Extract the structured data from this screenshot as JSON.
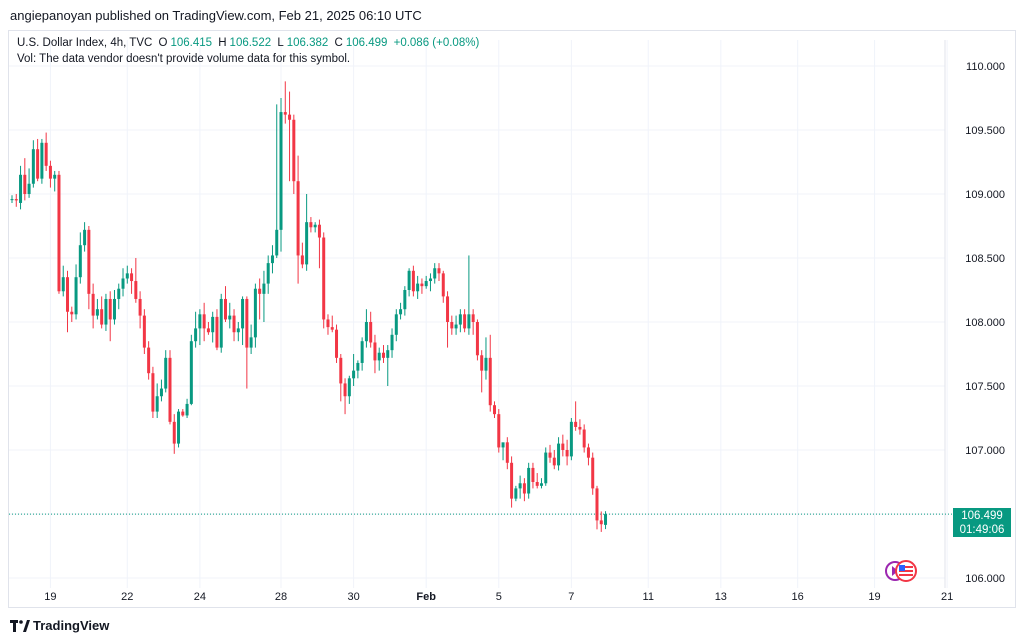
{
  "header": {
    "published": "angiepanoyan published on TradingView.com, Feb 21, 2025 06:10 UTC"
  },
  "legend": {
    "title": "U.S. Dollar Index, 4h, TVC",
    "o_label": "O",
    "o_value": "106.415",
    "h_label": "H",
    "h_value": "106.522",
    "l_label": "L",
    "l_value": "106.382",
    "c_label": "C",
    "c_value": "106.499",
    "change": "+0.086 (+0.08%)",
    "volume_note": "Vol: The data vendor doesn't provide volume data for this symbol."
  },
  "badge": {
    "price": "106.499",
    "countdown": "01:49:06"
  },
  "footer": {
    "brand": "TradingView"
  },
  "colors": {
    "up": "#089981",
    "down": "#f23645",
    "grid": "#f0f3fa",
    "axis_text": "#131722",
    "last_line": "#089981"
  },
  "chart_data": {
    "type": "candlestick",
    "title": "U.S. Dollar Index, 4h, TVC",
    "ylim": [
      106.0,
      110.05
    ],
    "y_ticks": [
      "106.000",
      "106.500",
      "107.000",
      "107.500",
      "108.000",
      "108.500",
      "109.000",
      "109.500",
      "110.000"
    ],
    "y_tick_values": [
      106.0,
      106.5,
      107.0,
      107.5,
      108.0,
      108.5,
      109.0,
      109.5,
      110.0
    ],
    "x_ticks": [
      "19",
      "22",
      "24",
      "28",
      "30",
      "Feb",
      "5",
      "7",
      "11",
      "13",
      "16",
      "19",
      "21"
    ],
    "x_tick_index": [
      9,
      27,
      44,
      63,
      80,
      97,
      114,
      131,
      149,
      166,
      184,
      202,
      219
    ],
    "last_price": 106.499,
    "candles": [
      {
        "o": 108.96,
        "h": 108.99,
        "l": 108.93,
        "c": 108.96
      },
      {
        "o": 108.96,
        "h": 109.0,
        "l": 108.9,
        "c": 108.95
      },
      {
        "o": 108.93,
        "h": 109.22,
        "l": 108.88,
        "c": 109.15
      },
      {
        "o": 109.15,
        "h": 109.28,
        "l": 108.95,
        "c": 109.0
      },
      {
        "o": 109.0,
        "h": 109.2,
        "l": 108.97,
        "c": 109.08
      },
      {
        "o": 109.08,
        "h": 109.42,
        "l": 109.05,
        "c": 109.35
      },
      {
        "o": 109.35,
        "h": 109.43,
        "l": 109.1,
        "c": 109.12
      },
      {
        "o": 109.12,
        "h": 109.43,
        "l": 109.08,
        "c": 109.4
      },
      {
        "o": 109.4,
        "h": 109.48,
        "l": 109.18,
        "c": 109.22
      },
      {
        "o": 109.22,
        "h": 109.26,
        "l": 109.05,
        "c": 109.12
      },
      {
        "o": 109.12,
        "h": 109.18,
        "l": 109.02,
        "c": 109.15
      },
      {
        "o": 109.15,
        "h": 109.18,
        "l": 108.22,
        "c": 108.24
      },
      {
        "o": 108.24,
        "h": 108.44,
        "l": 108.2,
        "c": 108.35
      },
      {
        "o": 108.35,
        "h": 108.4,
        "l": 107.92,
        "c": 108.08
      },
      {
        "o": 108.08,
        "h": 108.12,
        "l": 108.0,
        "c": 108.06
      },
      {
        "o": 108.06,
        "h": 108.45,
        "l": 108.02,
        "c": 108.35
      },
      {
        "o": 108.35,
        "h": 108.7,
        "l": 108.3,
        "c": 108.6
      },
      {
        "o": 108.6,
        "h": 108.78,
        "l": 108.55,
        "c": 108.72
      },
      {
        "o": 108.72,
        "h": 108.75,
        "l": 108.1,
        "c": 108.22
      },
      {
        "o": 108.22,
        "h": 108.3,
        "l": 107.95,
        "c": 108.05
      },
      {
        "o": 108.05,
        "h": 108.18,
        "l": 108.02,
        "c": 108.1
      },
      {
        "o": 108.1,
        "h": 108.2,
        "l": 107.95,
        "c": 107.98
      },
      {
        "o": 107.98,
        "h": 108.22,
        "l": 107.93,
        "c": 108.18
      },
      {
        "o": 108.18,
        "h": 108.24,
        "l": 107.85,
        "c": 108.02
      },
      {
        "o": 108.02,
        "h": 108.25,
        "l": 107.98,
        "c": 108.18
      },
      {
        "o": 108.18,
        "h": 108.3,
        "l": 108.1,
        "c": 108.26
      },
      {
        "o": 108.26,
        "h": 108.42,
        "l": 108.2,
        "c": 108.34
      },
      {
        "o": 108.34,
        "h": 108.44,
        "l": 108.3,
        "c": 108.38
      },
      {
        "o": 108.38,
        "h": 108.42,
        "l": 108.22,
        "c": 108.32
      },
      {
        "o": 108.32,
        "h": 108.5,
        "l": 108.15,
        "c": 108.18
      },
      {
        "o": 108.18,
        "h": 108.24,
        "l": 107.95,
        "c": 108.05
      },
      {
        "o": 108.05,
        "h": 108.1,
        "l": 107.75,
        "c": 107.8
      },
      {
        "o": 107.8,
        "h": 107.85,
        "l": 107.55,
        "c": 107.6
      },
      {
        "o": 107.6,
        "h": 107.65,
        "l": 107.25,
        "c": 107.3
      },
      {
        "o": 107.3,
        "h": 107.52,
        "l": 107.25,
        "c": 107.42
      },
      {
        "o": 107.42,
        "h": 107.55,
        "l": 107.38,
        "c": 107.48
      },
      {
        "o": 107.48,
        "h": 107.78,
        "l": 107.45,
        "c": 107.72
      },
      {
        "o": 107.72,
        "h": 107.78,
        "l": 107.2,
        "c": 107.22
      },
      {
        "o": 107.22,
        "h": 107.28,
        "l": 106.97,
        "c": 107.05
      },
      {
        "o": 107.05,
        "h": 107.32,
        "l": 107.02,
        "c": 107.3
      },
      {
        "o": 107.3,
        "h": 107.32,
        "l": 107.26,
        "c": 107.27
      },
      {
        "o": 107.27,
        "h": 107.4,
        "l": 107.25,
        "c": 107.36
      },
      {
        "o": 107.36,
        "h": 107.9,
        "l": 107.35,
        "c": 107.85
      },
      {
        "o": 107.85,
        "h": 108.08,
        "l": 107.8,
        "c": 107.95
      },
      {
        "o": 107.95,
        "h": 108.1,
        "l": 107.82,
        "c": 108.06
      },
      {
        "o": 108.06,
        "h": 108.15,
        "l": 107.85,
        "c": 107.95
      },
      {
        "o": 107.95,
        "h": 108.0,
        "l": 107.9,
        "c": 107.92
      },
      {
        "o": 107.92,
        "h": 108.08,
        "l": 107.84,
        "c": 108.04
      },
      {
        "o": 108.04,
        "h": 108.1,
        "l": 107.78,
        "c": 107.8
      },
      {
        "o": 107.8,
        "h": 108.22,
        "l": 107.76,
        "c": 108.18
      },
      {
        "o": 108.18,
        "h": 108.28,
        "l": 108.0,
        "c": 108.02
      },
      {
        "o": 108.02,
        "h": 108.15,
        "l": 107.95,
        "c": 108.05
      },
      {
        "o": 108.05,
        "h": 108.1,
        "l": 107.85,
        "c": 107.92
      },
      {
        "o": 107.92,
        "h": 108.0,
        "l": 107.85,
        "c": 107.95
      },
      {
        "o": 107.95,
        "h": 108.2,
        "l": 107.82,
        "c": 108.18
      },
      {
        "o": 108.18,
        "h": 108.2,
        "l": 107.48,
        "c": 107.8
      },
      {
        "o": 107.8,
        "h": 107.98,
        "l": 107.75,
        "c": 107.88
      },
      {
        "o": 107.88,
        "h": 108.3,
        "l": 107.8,
        "c": 108.26
      },
      {
        "o": 108.26,
        "h": 108.34,
        "l": 108.02,
        "c": 108.22
      },
      {
        "o": 108.22,
        "h": 108.4,
        "l": 108.0,
        "c": 108.3
      },
      {
        "o": 108.3,
        "h": 108.52,
        "l": 108.22,
        "c": 108.46
      },
      {
        "o": 108.46,
        "h": 108.6,
        "l": 108.38,
        "c": 108.52
      },
      {
        "o": 108.52,
        "h": 109.7,
        "l": 108.5,
        "c": 108.72
      },
      {
        "o": 108.72,
        "h": 109.75,
        "l": 108.55,
        "c": 109.64
      },
      {
        "o": 109.64,
        "h": 109.88,
        "l": 109.55,
        "c": 109.62
      },
      {
        "o": 109.62,
        "h": 109.8,
        "l": 109.1,
        "c": 109.58
      },
      {
        "o": 109.58,
        "h": 109.62,
        "l": 109.0,
        "c": 109.1
      },
      {
        "o": 109.1,
        "h": 109.3,
        "l": 108.3,
        "c": 108.52
      },
      {
        "o": 108.52,
        "h": 108.62,
        "l": 108.42,
        "c": 108.45
      },
      {
        "o": 108.45,
        "h": 109.0,
        "l": 108.4,
        "c": 108.78
      },
      {
        "o": 108.78,
        "h": 108.82,
        "l": 108.7,
        "c": 108.74
      },
      {
        "o": 108.74,
        "h": 108.78,
        "l": 108.7,
        "c": 108.76
      },
      {
        "o": 108.76,
        "h": 108.8,
        "l": 108.42,
        "c": 108.66
      },
      {
        "o": 108.66,
        "h": 108.7,
        "l": 107.95,
        "c": 108.02
      },
      {
        "o": 108.02,
        "h": 108.06,
        "l": 107.9,
        "c": 107.96
      },
      {
        "o": 107.96,
        "h": 108.05,
        "l": 107.92,
        "c": 107.94
      },
      {
        "o": 107.94,
        "h": 107.98,
        "l": 107.68,
        "c": 107.72
      },
      {
        "o": 107.72,
        "h": 107.75,
        "l": 107.38,
        "c": 107.52
      },
      {
        "o": 107.52,
        "h": 107.56,
        "l": 107.28,
        "c": 107.42
      },
      {
        "o": 107.42,
        "h": 107.58,
        "l": 107.36,
        "c": 107.56
      },
      {
        "o": 107.56,
        "h": 107.75,
        "l": 107.5,
        "c": 107.62
      },
      {
        "o": 107.62,
        "h": 107.7,
        "l": 107.56,
        "c": 107.68
      },
      {
        "o": 107.68,
        "h": 107.88,
        "l": 107.62,
        "c": 107.85
      },
      {
        "o": 107.85,
        "h": 108.1,
        "l": 107.8,
        "c": 108.0
      },
      {
        "o": 108.0,
        "h": 108.08,
        "l": 107.8,
        "c": 107.84
      },
      {
        "o": 107.84,
        "h": 107.9,
        "l": 107.6,
        "c": 107.7
      },
      {
        "o": 107.7,
        "h": 107.8,
        "l": 107.62,
        "c": 107.76
      },
      {
        "o": 107.76,
        "h": 107.82,
        "l": 107.68,
        "c": 107.72
      },
      {
        "o": 107.72,
        "h": 107.82,
        "l": 107.5,
        "c": 107.78
      },
      {
        "o": 107.78,
        "h": 107.95,
        "l": 107.72,
        "c": 107.9
      },
      {
        "o": 107.9,
        "h": 108.1,
        "l": 107.85,
        "c": 108.06
      },
      {
        "o": 108.06,
        "h": 108.15,
        "l": 108.02,
        "c": 108.1
      },
      {
        "o": 108.1,
        "h": 108.28,
        "l": 108.05,
        "c": 108.25
      },
      {
        "o": 108.25,
        "h": 108.42,
        "l": 108.2,
        "c": 108.4
      },
      {
        "o": 108.4,
        "h": 108.44,
        "l": 108.2,
        "c": 108.24
      },
      {
        "o": 108.24,
        "h": 108.36,
        "l": 108.18,
        "c": 108.3
      },
      {
        "o": 108.3,
        "h": 108.34,
        "l": 108.22,
        "c": 108.28
      },
      {
        "o": 108.28,
        "h": 108.36,
        "l": 108.26,
        "c": 108.32
      },
      {
        "o": 108.32,
        "h": 108.38,
        "l": 108.24,
        "c": 108.34
      },
      {
        "o": 108.34,
        "h": 108.46,
        "l": 108.3,
        "c": 108.42
      },
      {
        "o": 108.42,
        "h": 108.46,
        "l": 108.32,
        "c": 108.38
      },
      {
        "o": 108.38,
        "h": 108.4,
        "l": 108.15,
        "c": 108.2
      },
      {
        "o": 108.2,
        "h": 108.24,
        "l": 107.8,
        "c": 108.0
      },
      {
        "o": 108.0,
        "h": 108.05,
        "l": 107.9,
        "c": 107.95
      },
      {
        "o": 107.95,
        "h": 108.05,
        "l": 107.9,
        "c": 107.98
      },
      {
        "o": 107.98,
        "h": 108.1,
        "l": 107.92,
        "c": 108.06
      },
      {
        "o": 108.06,
        "h": 108.1,
        "l": 107.92,
        "c": 107.95
      },
      {
        "o": 107.95,
        "h": 108.52,
        "l": 107.9,
        "c": 108.06
      },
      {
        "o": 108.06,
        "h": 108.1,
        "l": 107.9,
        "c": 108.0
      },
      {
        "o": 108.0,
        "h": 108.02,
        "l": 107.7,
        "c": 107.74
      },
      {
        "o": 107.74,
        "h": 107.78,
        "l": 107.45,
        "c": 107.62
      },
      {
        "o": 107.62,
        "h": 107.88,
        "l": 107.55,
        "c": 107.72
      },
      {
        "o": 107.72,
        "h": 107.9,
        "l": 107.3,
        "c": 107.35
      },
      {
        "o": 107.35,
        "h": 107.38,
        "l": 107.25,
        "c": 107.28
      },
      {
        "o": 107.28,
        "h": 107.32,
        "l": 106.98,
        "c": 107.02
      },
      {
        "o": 107.02,
        "h": 107.05,
        "l": 106.92,
        "c": 107.06
      },
      {
        "o": 107.06,
        "h": 107.1,
        "l": 106.85,
        "c": 106.9
      },
      {
        "o": 106.9,
        "h": 106.95,
        "l": 106.55,
        "c": 106.62
      },
      {
        "o": 106.62,
        "h": 106.72,
        "l": 106.6,
        "c": 106.7
      },
      {
        "o": 106.7,
        "h": 106.8,
        "l": 106.62,
        "c": 106.74
      },
      {
        "o": 106.74,
        "h": 106.78,
        "l": 106.6,
        "c": 106.66
      },
      {
        "o": 106.66,
        "h": 106.9,
        "l": 106.62,
        "c": 106.86
      },
      {
        "o": 106.86,
        "h": 106.9,
        "l": 106.7,
        "c": 106.75
      },
      {
        "o": 106.75,
        "h": 106.82,
        "l": 106.7,
        "c": 106.72
      },
      {
        "o": 106.72,
        "h": 106.78,
        "l": 106.7,
        "c": 106.74
      },
      {
        "o": 106.74,
        "h": 107.02,
        "l": 106.72,
        "c": 106.98
      },
      {
        "o": 106.98,
        "h": 107.04,
        "l": 106.9,
        "c": 106.94
      },
      {
        "o": 106.94,
        "h": 107.0,
        "l": 106.85,
        "c": 106.88
      },
      {
        "o": 106.88,
        "h": 107.1,
        "l": 106.84,
        "c": 107.05
      },
      {
        "o": 107.05,
        "h": 107.12,
        "l": 106.95,
        "c": 107.0
      },
      {
        "o": 107.0,
        "h": 107.08,
        "l": 106.88,
        "c": 106.95
      },
      {
        "o": 106.95,
        "h": 107.25,
        "l": 106.92,
        "c": 107.22
      },
      {
        "o": 107.22,
        "h": 107.38,
        "l": 107.15,
        "c": 107.18
      },
      {
        "o": 107.18,
        "h": 107.24,
        "l": 107.12,
        "c": 107.16
      },
      {
        "o": 107.16,
        "h": 107.2,
        "l": 106.98,
        "c": 107.02
      },
      {
        "o": 107.02,
        "h": 107.05,
        "l": 106.88,
        "c": 106.94
      },
      {
        "o": 106.94,
        "h": 106.98,
        "l": 106.65,
        "c": 106.7
      },
      {
        "o": 106.7,
        "h": 106.72,
        "l": 106.38,
        "c": 106.45
      },
      {
        "o": 106.45,
        "h": 106.52,
        "l": 106.36,
        "c": 106.42
      },
      {
        "o": 106.415,
        "h": 106.522,
        "l": 106.382,
        "c": 106.499
      }
    ]
  }
}
